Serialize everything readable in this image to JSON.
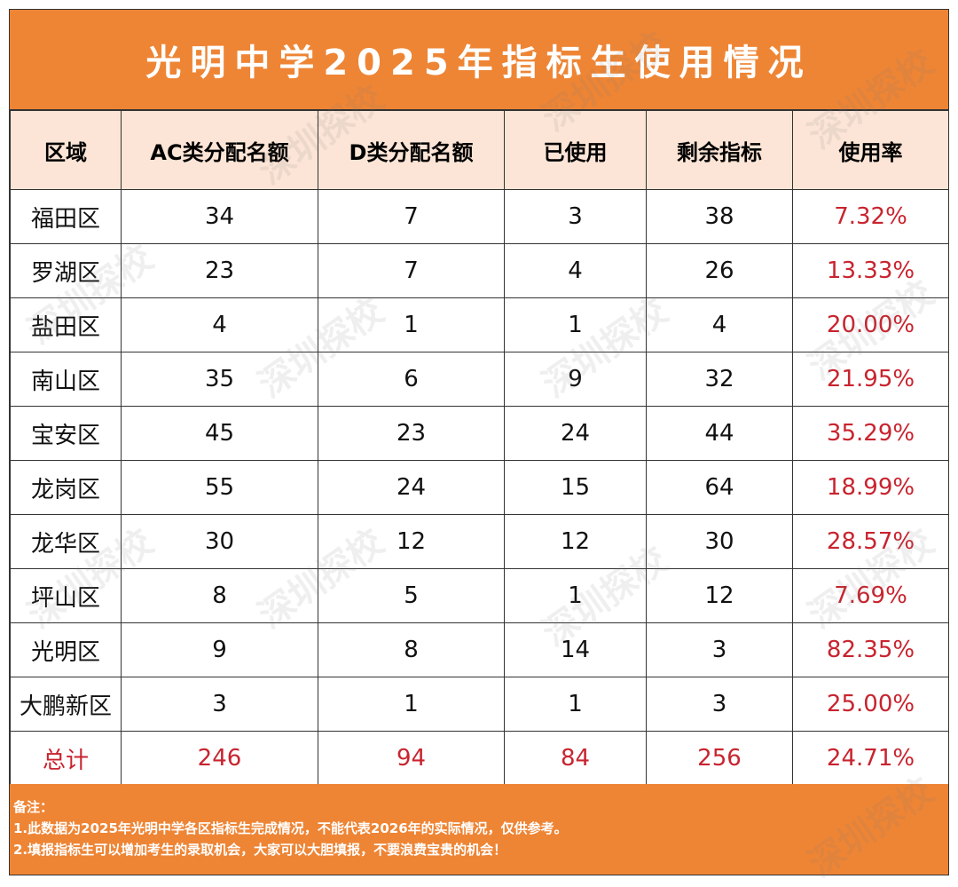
{
  "title": "光明中学2025年指标生使用情况",
  "watermark": "深圳探校",
  "colors": {
    "header_bg": "#ee8535",
    "col_header_bg": "#fce5d6",
    "rate_text": "#c8242f"
  },
  "columns": [
    "区域",
    "AC类分配名额",
    "D类分配名额",
    "已使用",
    "剩余指标",
    "使用率"
  ],
  "rows": [
    [
      "福田区",
      "34",
      "7",
      "3",
      "38",
      "7.32%"
    ],
    [
      "罗湖区",
      "23",
      "7",
      "4",
      "26",
      "13.33%"
    ],
    [
      "盐田区",
      "4",
      "1",
      "1",
      "4",
      "20.00%"
    ],
    [
      "南山区",
      "35",
      "6",
      "9",
      "32",
      "21.95%"
    ],
    [
      "宝安区",
      "45",
      "23",
      "24",
      "44",
      "35.29%"
    ],
    [
      "龙岗区",
      "55",
      "24",
      "15",
      "64",
      "18.99%"
    ],
    [
      "龙华区",
      "30",
      "12",
      "12",
      "30",
      "28.57%"
    ],
    [
      "坪山区",
      "8",
      "5",
      "1",
      "12",
      "7.69%"
    ],
    [
      "光明区",
      "9",
      "8",
      "14",
      "3",
      "82.35%"
    ],
    [
      "大鹏新区",
      "3",
      "1",
      "1",
      "3",
      "25.00%"
    ]
  ],
  "total": [
    "总计",
    "246",
    "94",
    "84",
    "256",
    "24.71%"
  ],
  "notes": {
    "heading": "备注：",
    "line1": "1.此数据为2025年光明中学各区指标生完成情况，不能代表2026年的实际情况，仅供参考。",
    "line2": "2.填报指标生可以增加考生的录取机会，大家可以大胆填报，不要浪费宝贵的机会！"
  }
}
